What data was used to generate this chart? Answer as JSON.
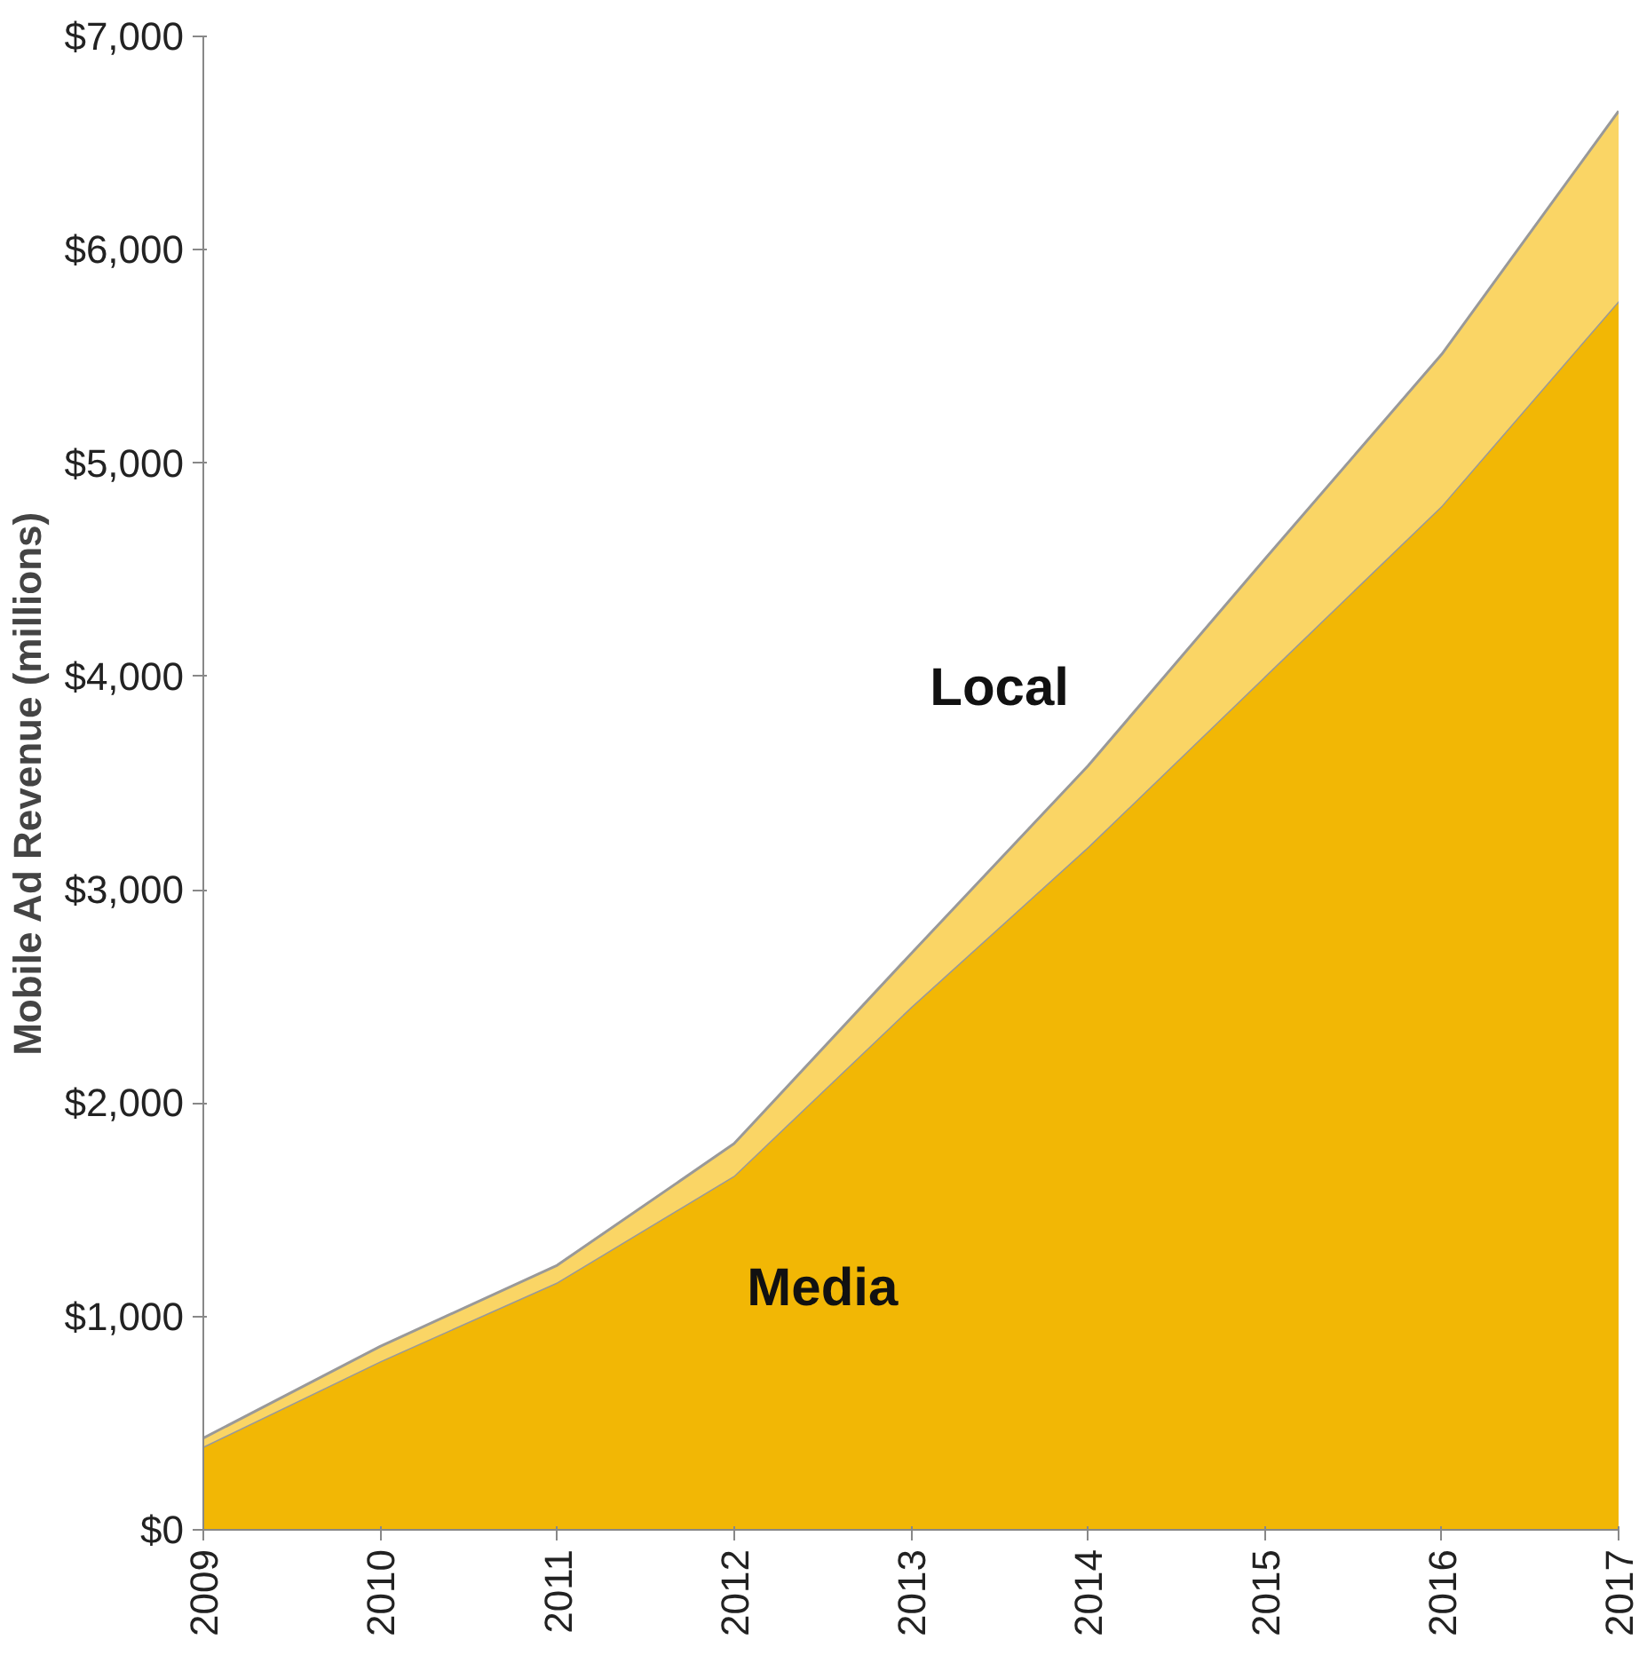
{
  "chart_data": {
    "type": "area",
    "stacked": true,
    "ylabel": "Mobile Ad Revenue (millions)",
    "categories": [
      "2009",
      "2010",
      "2011",
      "2012",
      "2013",
      "2014",
      "2015",
      "2016",
      "2017"
    ],
    "series": [
      {
        "name": "Media",
        "color": "#f2b705",
        "values": [
          390,
          790,
          1160,
          1660,
          2450,
          3200,
          4000,
          4800,
          5760
        ]
      },
      {
        "name": "Local",
        "color": "#fad565",
        "values": [
          40,
          70,
          80,
          150,
          250,
          380,
          550,
          710,
          890
        ]
      }
    ],
    "ylim": [
      0,
      7000
    ],
    "yticks": [
      {
        "value": 0,
        "label": "$0"
      },
      {
        "value": 1000,
        "label": "$1,000"
      },
      {
        "value": 2000,
        "label": "$2,000"
      },
      {
        "value": 3000,
        "label": "$3,000"
      },
      {
        "value": 4000,
        "label": "$4,000"
      },
      {
        "value": 5000,
        "label": "$5,000"
      },
      {
        "value": 6000,
        "label": "$6,000"
      },
      {
        "value": 7000,
        "label": "$7,000"
      }
    ],
    "grid": false
  }
}
